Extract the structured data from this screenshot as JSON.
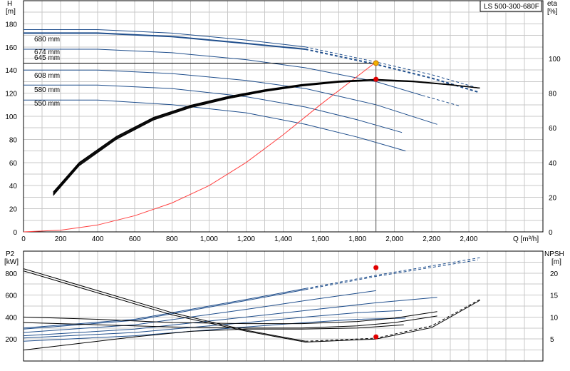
{
  "title_box": "LS 500-300-680F",
  "chart_data": [
    {
      "type": "line",
      "title": "",
      "xlabel": "Q [m³/h]",
      "ylabel": "H\n[m]",
      "y2label": "eta\n[%]",
      "xlim": [
        0,
        2800
      ],
      "ylim": [
        0,
        200
      ],
      "y2lim": [
        0,
        133.3
      ],
      "xticks": [
        "0",
        "200",
        "400",
        "600",
        "800",
        "1,000",
        "1,200",
        "1,400",
        "1,600",
        "1,800",
        "2,000",
        "2,200",
        "2,400"
      ],
      "yticks": [
        "0",
        "20",
        "40",
        "60",
        "80",
        "100",
        "120",
        "140",
        "160",
        "180"
      ],
      "y2ticks": [
        "0",
        "20",
        "40",
        "60",
        "80",
        "100"
      ],
      "grid": true,
      "curve_labels": [
        "680 mm",
        "674 mm",
        "645 mm",
        "608 mm",
        "580 mm",
        "550 mm"
      ],
      "series": [
        {
          "name": "680 mm",
          "color": "#1f4e8c",
          "x": [
            0,
            400,
            800,
            1200,
            1520,
            1900,
            2200,
            2460
          ],
          "y": [
            175,
            175,
            172,
            166,
            160,
            147,
            136,
            124
          ],
          "dash_from": 1520
        },
        {
          "name": "674 mm",
          "color": "#1f4e8c",
          "x": [
            0,
            400,
            800,
            1200,
            1520,
            1900,
            2200,
            2450
          ],
          "y": [
            172,
            172,
            169,
            163,
            158,
            145,
            133,
            121
          ],
          "dash_from": 1520,
          "bold": true
        },
        {
          "name": "645 mm",
          "color": "#1f4e8c",
          "x": [
            0,
            400,
            800,
            1200,
            1520,
            1900,
            2150,
            2350
          ],
          "y": [
            158,
            158,
            155,
            149,
            142,
            130,
            118,
            109
          ],
          "dash_from": 2150
        },
        {
          "name": "608 mm",
          "color": "#1f4e8c",
          "x": [
            0,
            400,
            800,
            1200,
            1520,
            1900,
            2230
          ],
          "y": [
            140,
            140,
            137,
            131,
            124,
            110,
            93
          ]
        },
        {
          "name": "580 mm",
          "color": "#1f4e8c",
          "x": [
            0,
            400,
            800,
            1200,
            1520,
            1800,
            2040
          ],
          "y": [
            127,
            127,
            124,
            117,
            108,
            97,
            86
          ]
        },
        {
          "name": "550 mm",
          "color": "#1f4e8c",
          "x": [
            0,
            400,
            800,
            1200,
            1520,
            1800,
            2060
          ],
          "y": [
            114,
            114,
            110,
            103,
            93,
            82,
            70
          ]
        },
        {
          "name": "system",
          "color": "#ff4040",
          "x": [
            0,
            200,
            400,
            600,
            800,
            1000,
            1200,
            1400,
            1600,
            1900
          ],
          "y": [
            0,
            1.5,
            6,
            14,
            25,
            40,
            60,
            84,
            110,
            147
          ]
        },
        {
          "name": "eta",
          "color": "#000000",
          "axis": "y2",
          "x": [
            160,
            300,
            500,
            700,
            900,
            1100,
            1300,
            1500,
            1700,
            1900,
            2100,
            2300,
            2460
          ],
          "y": [
            23,
            40,
            55,
            66,
            73,
            78,
            82,
            85,
            87,
            88,
            87,
            85,
            83
          ],
          "spread": [
            0,
            0.5,
            1,
            1.5,
            2
          ]
        }
      ],
      "operating_point": {
        "x": 1900,
        "y": 146,
        "eta": 88
      }
    },
    {
      "type": "line",
      "title": "",
      "ylabel": "P2\n[kW]",
      "y2label": "NPSH\n[m]",
      "xlim": [
        0,
        2800
      ],
      "ylim": [
        0,
        1000
      ],
      "y2lim": [
        0,
        25
      ],
      "yticks": [
        "200",
        "400",
        "600",
        "800"
      ],
      "y2ticks": [
        "5",
        "10",
        "15",
        "20"
      ],
      "grid": true,
      "series": [
        {
          "name": "P2 680 mm",
          "color": "#1f4e8c",
          "x": [
            0,
            600,
            1200,
            1520,
            1900,
            2460
          ],
          "y": [
            300,
            380,
            560,
            660,
            780,
            940
          ],
          "dash_from": 1520
        },
        {
          "name": "P2 674 mm",
          "color": "#1f4e8c",
          "x": [
            0,
            600,
            1200,
            1520,
            1900,
            2450
          ],
          "y": [
            290,
            370,
            550,
            650,
            770,
            920
          ],
          "dash_from": 1520
        },
        {
          "name": "P2 645 mm",
          "color": "#1f4e8c",
          "x": [
            0,
            600,
            1200,
            1520,
            1900,
            2350
          ],
          "y": [
            260,
            330,
            470,
            550,
            640,
            720
          ],
          "dash_from": 2150
        },
        {
          "name": "P2 608 mm",
          "color": "#1f4e8c",
          "x": [
            0,
            600,
            1200,
            1520,
            1900,
            2230
          ],
          "y": [
            230,
            290,
            400,
            460,
            530,
            580
          ]
        },
        {
          "name": "P2 580 mm",
          "color": "#1f4e8c",
          "x": [
            0,
            600,
            1200,
            1520,
            1800,
            2040
          ],
          "y": [
            210,
            260,
            350,
            400,
            440,
            460
          ]
        },
        {
          "name": "P2 550 mm",
          "color": "#1f4e8c",
          "x": [
            0,
            600,
            1200,
            1520,
            1800,
            2060
          ],
          "y": [
            180,
            230,
            310,
            350,
            380,
            390
          ]
        },
        {
          "name": "NPSH",
          "color": "#000000",
          "axis": "y2",
          "x": [
            0,
            400,
            800,
            1200,
            1520,
            1900,
            2200,
            2460
          ],
          "y": [
            21,
            16,
            11,
            7,
            4.5,
            5.2,
            8,
            14
          ],
          "dash_from": 1520
        },
        {
          "name": "NPSH 2",
          "color": "#000000",
          "axis": "y2",
          "x": [
            0,
            400,
            800,
            1200,
            1520,
            1900,
            2200,
            2460
          ],
          "y": [
            20.5,
            15.5,
            10.5,
            6.8,
            4.3,
            5.0,
            7.6,
            13.8
          ]
        },
        {
          "name": "P2 low 1",
          "color": "#000000",
          "x": [
            0,
            400,
            800,
            1200,
            1500,
            1800,
            2000,
            2230
          ],
          "y": [
            400,
            380,
            350,
            340,
            340,
            360,
            390,
            450
          ]
        },
        {
          "name": "P2 low 2",
          "color": "#000000",
          "x": [
            0,
            400,
            800,
            1200,
            1500,
            1800,
            2000,
            2230
          ],
          "y": [
            350,
            330,
            310,
            300,
            300,
            320,
            350,
            410
          ]
        },
        {
          "name": "P2 low 3",
          "color": "#000000",
          "x": [
            0,
            300,
            600,
            900,
            1200,
            1500,
            1800,
            2050
          ],
          "y": [
            100,
            160,
            220,
            270,
            290,
            290,
            300,
            330
          ]
        }
      ],
      "operating_point": {
        "x": 1900,
        "p2": 850,
        "npsh": 5.5
      }
    }
  ]
}
